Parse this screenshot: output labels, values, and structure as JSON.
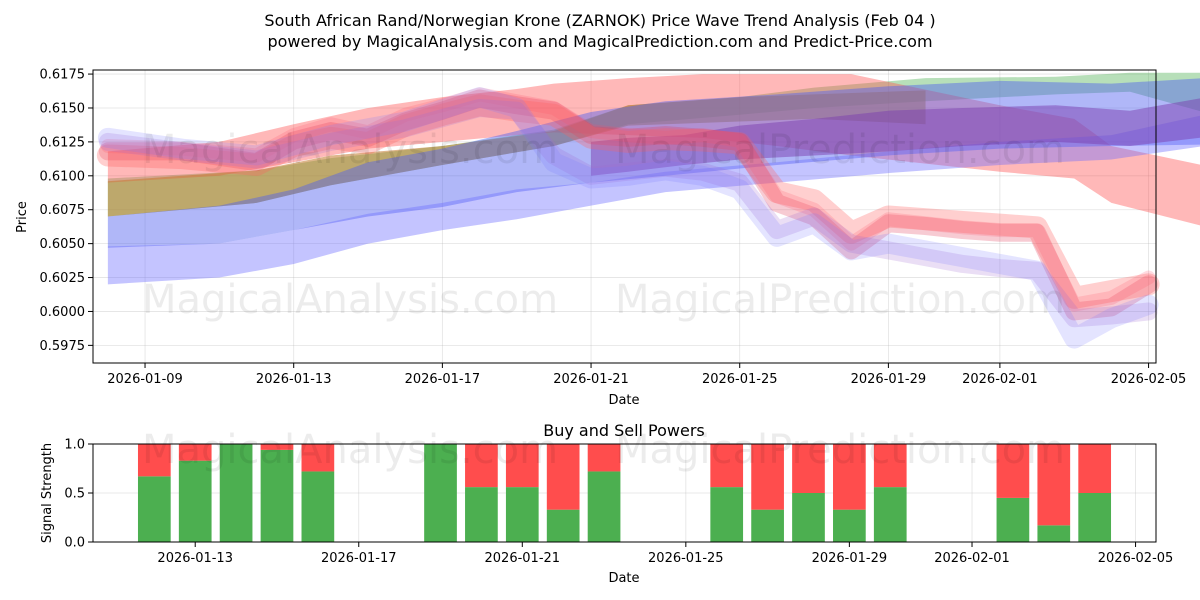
{
  "chart_data": [
    {
      "type": "area",
      "title": "South African Rand/Norwegian Krone (ZARNOK) Price Wave Trend Analysis (Feb 04 )",
      "subtitle": "powered by MagicalAnalysis.com and MagicalPrediction.com and Predict-Price.com",
      "xlabel": "Date",
      "ylabel": "Price",
      "x_range": [
        "2026-01-07.6",
        "2026-02-05.2"
      ],
      "ylim": [
        0.5962,
        0.6178
      ],
      "x_ticks": [
        "2026-01-09",
        "2026-01-13",
        "2026-01-17",
        "2026-01-21",
        "2026-01-25",
        "2026-01-29",
        "2026-02-01",
        "2026-02-05"
      ],
      "y_ticks": [
        "0.5975",
        "0.6000",
        "0.6025",
        "0.6050",
        "0.6075",
        "0.6100",
        "0.6125",
        "0.6150",
        "0.6175"
      ],
      "watermarks": [
        "MagicalAnalysis.com",
        "MagicalPrediction.com",
        "MagicalAnalysis.com",
        "MagicalPrediction.com"
      ],
      "bands": [
        {
          "name": "green",
          "color": "#4caf50",
          "opacity": 0.4,
          "x": [
            0,
            2,
            4,
            6,
            9,
            12,
            14,
            17,
            19,
            22,
            25.5,
            27.5,
            30
          ],
          "upper": [
            0.6098,
            0.6101,
            0.6104,
            0.6113,
            0.6122,
            0.6134,
            0.6152,
            0.6158,
            0.6165,
            0.6172,
            0.6173,
            0.6176,
            0.6176
          ],
          "lower": [
            0.607,
            0.6075,
            0.608,
            0.6093,
            0.6108,
            0.6122,
            0.6138,
            0.6145,
            0.615,
            0.6155,
            0.616,
            0.6162,
            0.6143
          ]
        },
        {
          "name": "red-wide",
          "color": "#ff4d4d",
          "opacity": 0.4,
          "x": [
            0,
            3,
            5,
            7,
            9,
            11,
            12,
            14,
            16,
            18,
            20,
            24,
            26,
            27,
            29.6
          ],
          "upper": [
            0.6118,
            0.6125,
            0.6138,
            0.615,
            0.6158,
            0.6164,
            0.6168,
            0.6172,
            0.6175,
            0.6175,
            0.6175,
            0.6152,
            0.6142,
            0.6122,
            0.6107
          ],
          "lower": [
            0.6095,
            0.61,
            0.611,
            0.612,
            0.6125,
            0.613,
            0.6132,
            0.613,
            0.6128,
            0.6122,
            0.6115,
            0.6103,
            0.6098,
            0.608,
            0.6062
          ]
        },
        {
          "name": "orange-overlap",
          "color": "#c27a2d",
          "opacity": 0.55,
          "x": [
            0,
            2,
            4,
            6,
            9,
            12,
            14,
            17,
            19,
            22
          ],
          "upper": [
            0.6096,
            0.61,
            0.6104,
            0.6115,
            0.6122,
            0.6133,
            0.6152,
            0.6158,
            0.616,
            0.6163
          ],
          "lower": [
            0.607,
            0.6075,
            0.608,
            0.6093,
            0.6108,
            0.6122,
            0.6137,
            0.614,
            0.6142,
            0.6138
          ]
        },
        {
          "name": "blue-main",
          "color": "#5060f0",
          "opacity": 0.45,
          "x": [
            0,
            3,
            5,
            7,
            9,
            11,
            13,
            15,
            18,
            21,
            24,
            27,
            29.5
          ],
          "upper": [
            0.607,
            0.6078,
            0.609,
            0.611,
            0.612,
            0.6133,
            0.6147,
            0.6155,
            0.616,
            0.6166,
            0.617,
            0.6168,
            0.6172
          ],
          "lower": [
            0.6047,
            0.605,
            0.606,
            0.607,
            0.6077,
            0.6088,
            0.6095,
            0.61,
            0.6108,
            0.6115,
            0.612,
            0.6122,
            0.6123
          ]
        },
        {
          "name": "blue-low",
          "color": "#6b6bff",
          "opacity": 0.4,
          "x": [
            0,
            3,
            5,
            7,
            9,
            11,
            13,
            15,
            18,
            21,
            24,
            27,
            29.5
          ],
          "upper": [
            0.6048,
            0.605,
            0.606,
            0.6072,
            0.608,
            0.609,
            0.6095,
            0.6103,
            0.611,
            0.6118,
            0.6125,
            0.613,
            0.6145
          ],
          "lower": [
            0.602,
            0.6025,
            0.6035,
            0.605,
            0.606,
            0.6068,
            0.6078,
            0.6088,
            0.6095,
            0.6102,
            0.6108,
            0.6112,
            0.6122
          ]
        },
        {
          "name": "purple-dark",
          "color": "#7b3fb0",
          "opacity": 0.5,
          "x": [
            13,
            14,
            15.5,
            17,
            19,
            21,
            23,
            25.5,
            27.5,
            30
          ],
          "upper": [
            0.6125,
            0.6128,
            0.613,
            0.6137,
            0.6142,
            0.6148,
            0.615,
            0.6152,
            0.6148,
            0.616
          ],
          "lower": [
            0.61,
            0.6103,
            0.6108,
            0.6112,
            0.6115,
            0.6118,
            0.6122,
            0.6125,
            0.6122,
            0.613
          ]
        }
      ],
      "lines": [
        {
          "color": "#e03050",
          "opacity": 0.25,
          "width": 18,
          "x": [
            0,
            2,
            4,
            5,
            6,
            7,
            8,
            9,
            10,
            11,
            12,
            13,
            14,
            15,
            16,
            17,
            18,
            19,
            20,
            21,
            22,
            23,
            24,
            25,
            26,
            27,
            28
          ],
          "y": [
            0.6118,
            0.6118,
            0.611,
            0.6126,
            0.6133,
            0.6128,
            0.614,
            0.6148,
            0.6157,
            0.6152,
            0.6148,
            0.613,
            0.6128,
            0.613,
            0.6128,
            0.6125,
            0.608,
            0.607,
            0.6045,
            0.6065,
            0.6063,
            0.606,
            0.6058,
            0.6058,
            0.6,
            0.6003,
            0.602
          ]
        },
        {
          "color": "#ff4d6a",
          "opacity": 0.2,
          "width": 14,
          "x": [
            0,
            2,
            4,
            5,
            6,
            7,
            8,
            9,
            10,
            11,
            12,
            13,
            14,
            15,
            16,
            17,
            18,
            19,
            20,
            21,
            22,
            23,
            24,
            25,
            26,
            27,
            28
          ],
          "y": [
            0.6122,
            0.612,
            0.6115,
            0.613,
            0.6138,
            0.6132,
            0.6145,
            0.6152,
            0.616,
            0.6155,
            0.615,
            0.6133,
            0.613,
            0.6128,
            0.613,
            0.6126,
            0.6085,
            0.6075,
            0.605,
            0.6068,
            0.6065,
            0.6062,
            0.606,
            0.606,
            0.6005,
            0.601,
            0.6025
          ]
        },
        {
          "color": "#ff6060",
          "opacity": 0.3,
          "width": 22,
          "x": [
            0,
            2,
            4,
            5,
            6,
            7,
            8,
            9,
            10,
            11,
            12,
            13,
            14,
            15,
            16,
            17,
            18,
            19,
            20,
            21,
            22,
            23,
            24,
            25,
            26,
            27,
            28
          ],
          "y": [
            0.6115,
            0.6113,
            0.6108,
            0.6122,
            0.6128,
            0.6124,
            0.6137,
            0.6145,
            0.6152,
            0.6148,
            0.6145,
            0.6128,
            0.6125,
            0.6127,
            0.6126,
            0.6124,
            0.6088,
            0.6082,
            0.6058,
            0.607,
            0.6068,
            0.6066,
            0.6064,
            0.6062,
            0.601,
            0.6015,
            0.602
          ]
        },
        {
          "color": "#a06ad0",
          "opacity": 0.22,
          "width": 18,
          "x": [
            0,
            2,
            4,
            6,
            8,
            10,
            11,
            12,
            13,
            14,
            15,
            16,
            17,
            18,
            19,
            20,
            21,
            22,
            23,
            24,
            25,
            26,
            27,
            28
          ],
          "y": [
            0.6125,
            0.6118,
            0.6112,
            0.6125,
            0.6135,
            0.615,
            0.6148,
            0.6115,
            0.61,
            0.6103,
            0.6106,
            0.6103,
            0.6095,
            0.606,
            0.607,
            0.605,
            0.6045,
            0.604,
            0.6035,
            0.6032,
            0.603,
            0.5995,
            0.5997,
            0.6
          ]
        },
        {
          "color": "#7a7aff",
          "opacity": 0.2,
          "width": 20,
          "x": [
            0,
            2,
            4,
            6,
            8,
            10,
            11,
            12,
            13,
            14,
            15,
            16,
            17,
            18,
            19,
            20,
            21,
            22,
            23,
            24,
            25,
            26,
            27,
            28
          ],
          "y": [
            0.6128,
            0.612,
            0.6115,
            0.613,
            0.614,
            0.6158,
            0.615,
            0.611,
            0.6098,
            0.61,
            0.6104,
            0.61,
            0.609,
            0.6055,
            0.6065,
            0.6045,
            0.605,
            0.6045,
            0.604,
            0.6035,
            0.603,
            0.598,
            0.5995,
            0.6005
          ]
        }
      ]
    },
    {
      "type": "bar",
      "title": "Buy and Sell Powers",
      "xlabel": "Date",
      "ylabel": "Signal Strength",
      "ylim": [
        0.0,
        1.0
      ],
      "x_range": [
        "2026-01-10.5",
        "2026-02-05.5"
      ],
      "x_ticks": [
        "2026-01-13",
        "2026-01-17",
        "2026-01-21",
        "2026-01-25",
        "2026-01-29",
        "2026-02-01",
        "2026-02-05"
      ],
      "y_ticks": [
        "0.0",
        "0.5",
        "1.0"
      ],
      "buy_color": "#4caf50",
      "sell_color": "#ff4d4d",
      "categories": [
        "2026-01-12",
        "2026-01-13",
        "2026-01-14",
        "2026-01-15",
        "2026-01-16",
        "2026-01-19",
        "2026-01-20",
        "2026-01-21",
        "2026-01-22",
        "2026-01-23",
        "2026-01-26",
        "2026-01-27",
        "2026-01-28",
        "2026-01-29",
        "2026-01-30",
        "2026-02-02",
        "2026-02-03",
        "2026-02-04"
      ],
      "series": [
        {
          "name": "Buy",
          "values": [
            0.67,
            0.83,
            1.0,
            0.94,
            0.72,
            1.0,
            0.56,
            0.56,
            0.33,
            0.72,
            0.56,
            0.33,
            0.5,
            0.33,
            0.56,
            0.45,
            0.17,
            0.5
          ]
        },
        {
          "name": "Sell",
          "values": [
            0.33,
            0.17,
            0.0,
            0.06,
            0.28,
            0.0,
            0.44,
            0.44,
            0.67,
            0.28,
            0.44,
            0.67,
            0.5,
            0.67,
            0.44,
            0.55,
            0.83,
            0.5
          ]
        }
      ]
    }
  ]
}
